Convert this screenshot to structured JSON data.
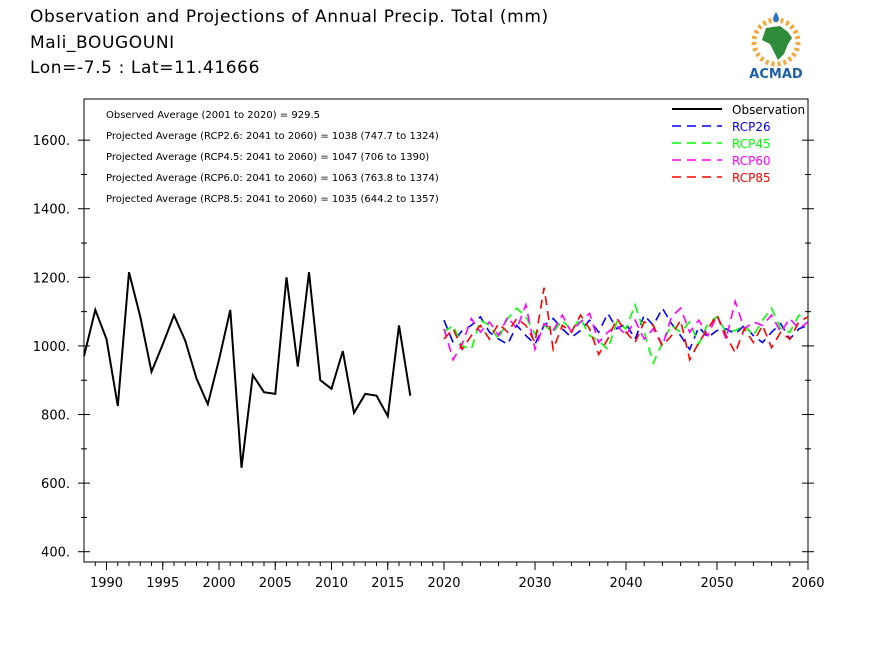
{
  "header": {
    "title": "Observation and Projections of Annual Precip. Total (mm)",
    "location": "Mali_BOUGOUNI",
    "coords": "Lon=-7.5 : Lat=11.41666"
  },
  "logo": {
    "text": "ACMAD",
    "icon": "africa-map-icon"
  },
  "chart_data": {
    "type": "line",
    "title": "Observation and Projections of Annual Precip. Total (mm)",
    "xlim": [
      1988,
      2060
    ],
    "ylim": [
      370,
      1720
    ],
    "x_ticks_left": [
      1990,
      1995,
      2000,
      2005,
      2010,
      2015,
      2020
    ],
    "x_ticks_right": [
      2030,
      2040,
      2050,
      2060
    ],
    "x_break": 2020,
    "y_ticks": [
      400,
      600,
      800,
      1000,
      1200,
      1400,
      1600
    ],
    "y_tick_labels": [
      "400.",
      "600.",
      "800.",
      "1000.",
      "1200.",
      "1400.",
      "1600."
    ],
    "grid": false,
    "legend_position": "top-right",
    "annotations": [
      "Observed Average (2001 to 2020) = 929.5",
      "Projected Average (RCP2.6: 2041 to 2060) = 1038 (747.7 to 1324)",
      "Projected Average (RCP4.5: 2041 to 2060) = 1047 (706 to 1390)",
      "Projected Average (RCP6.0: 2041 to 2060) = 1063 (763.8 to 1374)",
      "Projected Average (RCP8.5: 2041 to 2060) = 1035 (644.2 to 1357)"
    ],
    "series": [
      {
        "name": "Observation",
        "color": "#000000",
        "dash": "solid",
        "x": [
          1988,
          1989,
          1990,
          1991,
          1992,
          1993,
          1994,
          1995,
          1996,
          1997,
          1998,
          1999,
          2000,
          2001,
          2002,
          2003,
          2004,
          2005,
          2006,
          2007,
          2008,
          2009,
          2010,
          2011,
          2012,
          2013,
          2014,
          2015,
          2016,
          2017,
          2018,
          2019
        ],
        "y": [
          970,
          1105,
          1020,
          825,
          1215,
          1085,
          925,
          1005,
          1090,
          1015,
          905,
          830,
          960,
          1105,
          645,
          915,
          865,
          860,
          1200,
          940,
          1215,
          900,
          875,
          985,
          805,
          860,
          855,
          795,
          1060,
          855,
          null,
          null
        ]
      },
      {
        "name": "RCP26",
        "color": "#0000ff",
        "dash": "dashed",
        "x": [
          2020,
          2021,
          2022,
          2023,
          2024,
          2025,
          2026,
          2027,
          2028,
          2029,
          2030,
          2031,
          2032,
          2033,
          2034,
          2035,
          2036,
          2037,
          2038,
          2039,
          2040,
          2041,
          2042,
          2043,
          2044,
          2045,
          2046,
          2047,
          2048,
          2049,
          2050,
          2051,
          2052,
          2053,
          2054,
          2055,
          2056,
          2057,
          2058,
          2059,
          2060
        ],
        "y": [
          1075,
          1010,
          1045,
          1060,
          1085,
          1040,
          1020,
          1005,
          1060,
          1030,
          1005,
          1060,
          1080,
          1050,
          1025,
          1045,
          1075,
          1040,
          1095,
          1050,
          1065,
          1020,
          1090,
          1060,
          1110,
          1065,
          1030,
          990,
          1055,
          1025,
          1045,
          1050,
          1035,
          1060,
          1030,
          1010,
          1040,
          1065,
          1020,
          1050,
          1060
        ]
      },
      {
        "name": "RCP45",
        "color": "#00ff00",
        "dash": "dashed",
        "x": [
          2020,
          2021,
          2022,
          2023,
          2024,
          2025,
          2026,
          2027,
          2028,
          2029,
          2030,
          2031,
          2032,
          2033,
          2034,
          2035,
          2036,
          2037,
          2038,
          2039,
          2040,
          2041,
          2042,
          2043,
          2044,
          2045,
          2046,
          2047,
          2048,
          2049,
          2050,
          2051,
          2052,
          2053,
          2054,
          2055,
          2056,
          2057,
          2058,
          2059,
          2060
        ],
        "y": [
          1040,
          1060,
          1000,
          990,
          1075,
          1060,
          1020,
          1080,
          1110,
          1085,
          1035,
          1060,
          1040,
          1075,
          1045,
          1080,
          1030,
          1015,
          990,
          1070,
          1050,
          1120,
          1040,
          950,
          1010,
          1060,
          1040,
          1070,
          1005,
          1065,
          1085,
          1040,
          1045,
          1060,
          1030,
          1075,
          1110,
          1050,
          1040,
          1090,
          1080
        ]
      },
      {
        "name": "RCP60",
        "color": "#ff00ff",
        "dash": "dashed",
        "x": [
          2020,
          2021,
          2022,
          2023,
          2024,
          2025,
          2026,
          2027,
          2028,
          2029,
          2030,
          2031,
          2032,
          2033,
          2034,
          2035,
          2036,
          2037,
          2038,
          2039,
          2040,
          2041,
          2042,
          2043,
          2044,
          2045,
          2046,
          2047,
          2048,
          2049,
          2050,
          2051,
          2052,
          2053,
          2054,
          2055,
          2056,
          2057,
          2058,
          2059,
          2060
        ],
        "y": [
          1050,
          960,
          1005,
          1080,
          1040,
          1070,
          1030,
          1085,
          1050,
          1120,
          990,
          1065,
          1045,
          1090,
          1040,
          1070,
          1095,
          1010,
          1040,
          1060,
          1030,
          1075,
          1020,
          1050,
          1000,
          1085,
          1110,
          1040,
          1075,
          1030,
          1090,
          1020,
          1130,
          1050,
          1070,
          1060,
          1090,
          1040,
          1080,
          1050,
          1070
        ]
      },
      {
        "name": "RCP85",
        "color": "#ff0000",
        "dash": "dashed",
        "x": [
          2020,
          2021,
          2022,
          2023,
          2024,
          2025,
          2026,
          2027,
          2028,
          2029,
          2030,
          2031,
          2032,
          2033,
          2034,
          2035,
          2036,
          2037,
          2038,
          2039,
          2040,
          2041,
          2042,
          2043,
          2044,
          2045,
          2046,
          2047,
          2048,
          2049,
          2050,
          2051,
          2052,
          2053,
          2054,
          2055,
          2056,
          2057,
          2058,
          2059,
          2060
        ],
        "y": [
          1020,
          1050,
          990,
          1030,
          1060,
          1020,
          1065,
          1040,
          1080,
          1060,
          1010,
          1170,
          990,
          1060,
          1040,
          1090,
          1050,
          975,
          1020,
          1080,
          1040,
          1010,
          1070,
          1060,
          1000,
          1030,
          1075,
          960,
          1010,
          1050,
          1090,
          1030,
          980,
          1050,
          1010,
          1060,
          995,
          1040,
          1020,
          1070,
          1085
        ]
      }
    ]
  }
}
